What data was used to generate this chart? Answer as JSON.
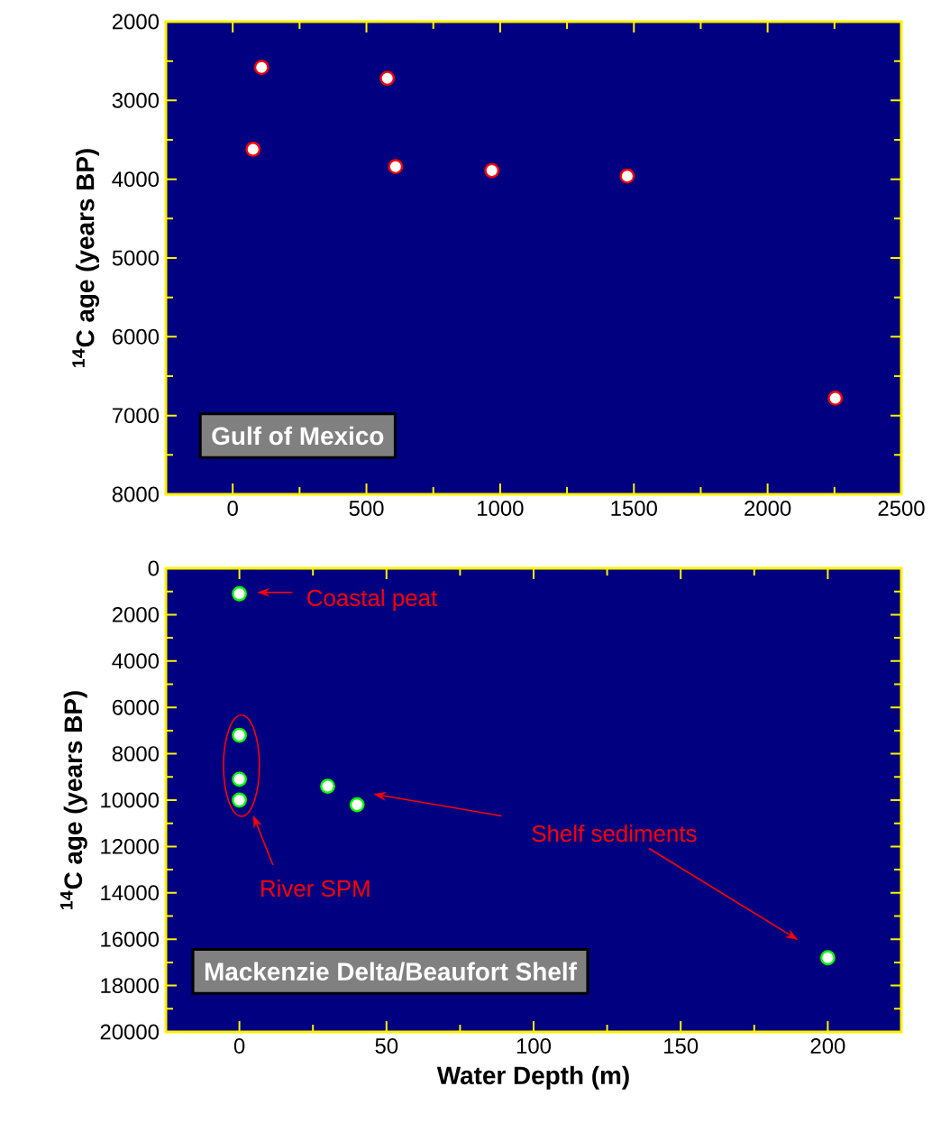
{
  "chart_data": [
    {
      "type": "scatter",
      "title": "Gulf of Mexico",
      "ylabel": "$^{14}$C age (years BP)",
      "x": [
        108,
        578,
        76,
        609,
        969,
        1475,
        2253
      ],
      "series": [
        {
          "color": "#ff0000",
          "values": [
            2580,
            2720,
            3620,
            3840,
            3890,
            3960,
            6780
          ]
        }
      ],
      "xlim": [
        -250,
        2500
      ],
      "ylim": [
        8000,
        2000
      ],
      "xticks": [
        0,
        500,
        1000,
        1500,
        2000,
        2500
      ],
      "yticks": [
        2000,
        3000,
        4000,
        5000,
        6000,
        7000,
        8000
      ],
      "marker": "circle",
      "grid": false
    },
    {
      "type": "scatter",
      "title": "Mackenzie Delta/Beaufort Shelf",
      "xlabel": "Water Depth (m)",
      "ylabel": "$^{14}$C age (years BP)",
      "x": [
        0,
        0,
        0,
        0,
        30,
        40,
        200
      ],
      "series": [
        {
          "color": "#00ff00",
          "values": [
            1100,
            7200,
            9100,
            10000,
            9400,
            10200,
            16800
          ]
        }
      ],
      "xlim": [
        -25,
        225
      ],
      "ylim": [
        20000,
        0
      ],
      "xticks": [
        0,
        50,
        100,
        150,
        200
      ],
      "yticks": [
        0,
        2000,
        4000,
        6000,
        8000,
        10000,
        12000,
        14000,
        16000,
        18000,
        20000
      ],
      "marker": "circle",
      "grid": false,
      "annotations": [
        {
          "text": "Coastal peat",
          "x": 0,
          "y": 1100
        },
        "River SPM",
        "Shelf sediments"
      ]
    }
  ]
}
